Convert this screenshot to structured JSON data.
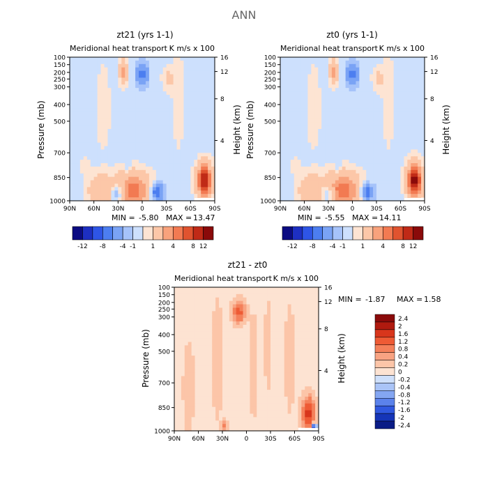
{
  "figure_title": "ANN",
  "chart_data": [
    {
      "type": "heatmap",
      "title": "zt21 (yrs 1-1)",
      "subtitle": "Meridional heat transport",
      "units": "K m/s x 100",
      "ylabel": "Pressure (mb)",
      "ylabel_right": "Height (km)",
      "x_ticks": [
        "90N",
        "60N",
        "30N",
        "0",
        "30S",
        "60S",
        "90S"
      ],
      "y_ticks": [
        "100",
        "150",
        "200",
        "250",
        "300",
        "400",
        "500",
        "700",
        "850",
        "1000"
      ],
      "right_ticks": [
        "16",
        "12",
        "8",
        "4"
      ],
      "min_label": "MIN =",
      "min_value": "-5.80",
      "max_label": "MAX =",
      "max_value": "13.47",
      "colorbar_labels": [
        "-12",
        "-8",
        "-4",
        "-1",
        "1",
        "4",
        "8",
        "12"
      ],
      "features": [
        {
          "x": 0.43,
          "y": 0.93,
          "rx": 0.12,
          "ry": 0.12,
          "v": 8.0
        },
        {
          "x": 0.21,
          "y": 0.93,
          "rx": 0.08,
          "ry": 0.1,
          "v": 4.0
        },
        {
          "x": 0.33,
          "y": 0.95,
          "rx": 0.05,
          "ry": 0.07,
          "v": -5.0
        },
        {
          "x": 0.6,
          "y": 0.94,
          "rx": 0.05,
          "ry": 0.06,
          "v": -5.8
        },
        {
          "x": 0.93,
          "y": 0.86,
          "rx": 0.05,
          "ry": 0.11,
          "v": 13.0
        },
        {
          "x": 0.4,
          "y": 0.77,
          "rx": 0.02,
          "ry": 0.04,
          "v": -1.5
        },
        {
          "x": 0.37,
          "y": 0.1,
          "rx": 0.025,
          "ry": 0.08,
          "v": 5.5
        },
        {
          "x": 0.5,
          "y": 0.12,
          "rx": 0.04,
          "ry": 0.08,
          "v": -4.5
        },
        {
          "x": 0.68,
          "y": 0.15,
          "rx": 0.04,
          "ry": 0.08,
          "v": 2.0
        },
        {
          "x": 0.23,
          "y": 0.35,
          "rx": 0.06,
          "ry": 0.35,
          "v": 0.8
        },
        {
          "x": 0.75,
          "y": 0.3,
          "rx": 0.05,
          "ry": 0.4,
          "v": 0.8
        },
        {
          "x": 0.1,
          "y": 0.75,
          "rx": 0.05,
          "ry": 0.08,
          "v": 0.6
        }
      ]
    },
    {
      "type": "heatmap",
      "title": "zt0 (yrs 1-1)",
      "subtitle": "Meridional heat transport",
      "units": "K m/s x 100",
      "ylabel": "Pressure (mb)",
      "ylabel_right": "Height (km)",
      "x_ticks": [
        "90N",
        "60N",
        "30N",
        "0",
        "30S",
        "60S",
        "90S"
      ],
      "y_ticks": [
        "100",
        "150",
        "200",
        "250",
        "300",
        "400",
        "500",
        "700",
        "850",
        "1000"
      ],
      "right_ticks": [
        "16",
        "12",
        "8",
        "4"
      ],
      "min_label": "MIN =",
      "min_value": "-5.55",
      "max_label": "MAX =",
      "max_value": "14.11",
      "colorbar_labels": [
        "-12",
        "-8",
        "-4",
        "-1",
        "1",
        "4",
        "8",
        "12"
      ],
      "features": [
        {
          "x": 0.43,
          "y": 0.93,
          "rx": 0.12,
          "ry": 0.12,
          "v": 8.0
        },
        {
          "x": 0.21,
          "y": 0.93,
          "rx": 0.08,
          "ry": 0.1,
          "v": 4.0
        },
        {
          "x": 0.33,
          "y": 0.95,
          "rx": 0.05,
          "ry": 0.07,
          "v": -4.5
        },
        {
          "x": 0.6,
          "y": 0.94,
          "rx": 0.05,
          "ry": 0.06,
          "v": -5.5
        },
        {
          "x": 0.93,
          "y": 0.86,
          "rx": 0.05,
          "ry": 0.11,
          "v": 14.0
        },
        {
          "x": 0.4,
          "y": 0.77,
          "rx": 0.02,
          "ry": 0.04,
          "v": -1.5
        },
        {
          "x": 0.37,
          "y": 0.1,
          "rx": 0.025,
          "ry": 0.08,
          "v": 5.5
        },
        {
          "x": 0.5,
          "y": 0.12,
          "rx": 0.04,
          "ry": 0.08,
          "v": -4.5
        },
        {
          "x": 0.68,
          "y": 0.15,
          "rx": 0.04,
          "ry": 0.08,
          "v": 2.0
        },
        {
          "x": 0.23,
          "y": 0.35,
          "rx": 0.06,
          "ry": 0.35,
          "v": 0.8
        },
        {
          "x": 0.75,
          "y": 0.3,
          "rx": 0.05,
          "ry": 0.4,
          "v": 0.8
        },
        {
          "x": 0.1,
          "y": 0.75,
          "rx": 0.05,
          "ry": 0.08,
          "v": 0.6
        }
      ]
    },
    {
      "type": "heatmap",
      "title": "zt21 - zt0",
      "subtitle": "Meridional heat transport",
      "units": "K m/s x 100",
      "ylabel": "Pressure (mb)",
      "ylabel_right": "Height (km)",
      "x_ticks": [
        "90N",
        "60N",
        "30N",
        "0",
        "30S",
        "60S",
        "90S"
      ],
      "y_ticks": [
        "100",
        "150",
        "200",
        "250",
        "300",
        "400",
        "500",
        "700",
        "850",
        "1000"
      ],
      "right_ticks": [
        "16",
        "12",
        "8",
        "4"
      ],
      "min_label": "MIN =",
      "min_value": "-1.87",
      "max_label": "MAX =",
      "max_value": "1.58",
      "colorbar_labels": [
        "2.4",
        "2",
        "1.6",
        "1.2",
        "0.8",
        "0.4",
        "0.2",
        "0",
        "-0.2",
        "-0.4",
        "-0.8",
        "-1.2",
        "-1.6",
        "-2",
        "-2.4"
      ],
      "features": [
        {
          "x": 0.45,
          "y": 0.17,
          "rx": 0.04,
          "ry": 0.07,
          "v": 1.0
        },
        {
          "x": 0.93,
          "y": 0.88,
          "rx": 0.04,
          "ry": 0.1,
          "v": 1.5
        },
        {
          "x": 0.97,
          "y": 0.98,
          "rx": 0.015,
          "ry": 0.03,
          "v": -1.8
        },
        {
          "x": 0.35,
          "y": 0.97,
          "rx": 0.02,
          "ry": 0.04,
          "v": 0.5
        },
        {
          "x": 0.1,
          "y": 0.7,
          "rx": 0.04,
          "ry": 0.3,
          "v": 0.15
        },
        {
          "x": 0.3,
          "y": 0.5,
          "rx": 0.04,
          "ry": 0.4,
          "v": 0.15
        },
        {
          "x": 0.55,
          "y": 0.55,
          "rx": 0.03,
          "ry": 0.35,
          "v": 0.15
        },
        {
          "x": 0.65,
          "y": 0.4,
          "rx": 0.025,
          "ry": 0.3,
          "v": 0.15
        },
        {
          "x": 0.8,
          "y": 0.5,
          "rx": 0.04,
          "ry": 0.4,
          "v": 0.12
        }
      ]
    }
  ],
  "colors": {
    "diverging": [
      "#0b0b82",
      "#1d2fc2",
      "#2e55e6",
      "#4c7ef0",
      "#7aa3f5",
      "#a6c3fa",
      "#cde0fd",
      "#fde4d3",
      "#fcc7a8",
      "#f8a27c",
      "#f27a52",
      "#e0532f",
      "#c02a17",
      "#8a0a0a"
    ],
    "diff_scale": [
      "#8a0a0a",
      "#b01a0f",
      "#d8361c",
      "#ee5b35",
      "#f4805a",
      "#f8a382",
      "#fcc5a8",
      "#fde3d2",
      "#cfe0fb",
      "#aac4f7",
      "#84a6f2",
      "#5b82eb",
      "#3058df",
      "#1535b8",
      "#0a1c86"
    ]
  }
}
